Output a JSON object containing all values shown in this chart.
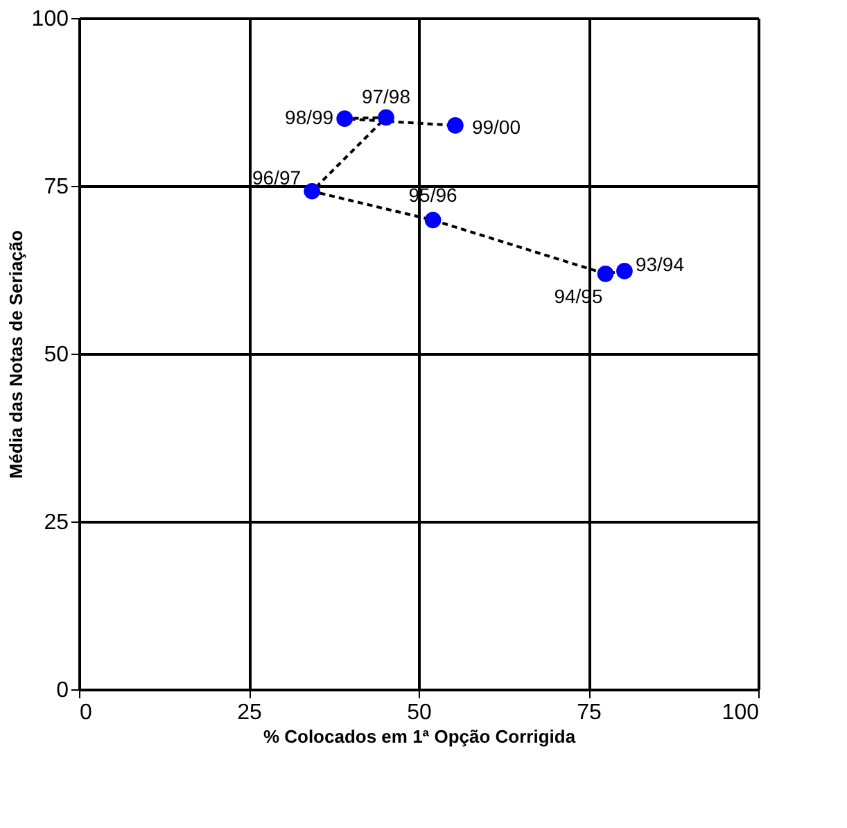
{
  "chart_data": {
    "type": "scatter",
    "xlabel": "% Colocados em 1ª Opção Corrigida",
    "ylabel": "Média das Notas de Seriação",
    "xlim": [
      0,
      100
    ],
    "xticks": [
      0,
      25,
      50,
      75,
      100
    ],
    "ylim": [
      0,
      100
    ],
    "yticks": [
      0,
      25,
      50,
      75,
      100
    ],
    "grid": true,
    "series": [
      {
        "type": "line",
        "color": "#000000",
        "line_style": "dashed",
        "marker": "none",
        "x": [
          80.3,
          77.5,
          52.1,
          34.3,
          45.2,
          39.1,
          55.4
        ],
        "values": [
          62.3,
          61.9,
          69.9,
          74.2,
          85.2,
          85.0,
          84.0
        ]
      },
      {
        "color": "#0000ff",
        "marker": "circle",
        "x": [
          80.3,
          77.5,
          52.1,
          34.3,
          45.2,
          39.1,
          55.4
        ],
        "values": [
          62.3,
          61.9,
          69.9,
          74.2,
          85.2,
          85.0,
          84.0
        ],
        "value_labels": [
          "93/94",
          "94/95",
          "95/96",
          "96/97",
          "97/98",
          "98/99",
          "99/00"
        ]
      }
    ]
  }
}
